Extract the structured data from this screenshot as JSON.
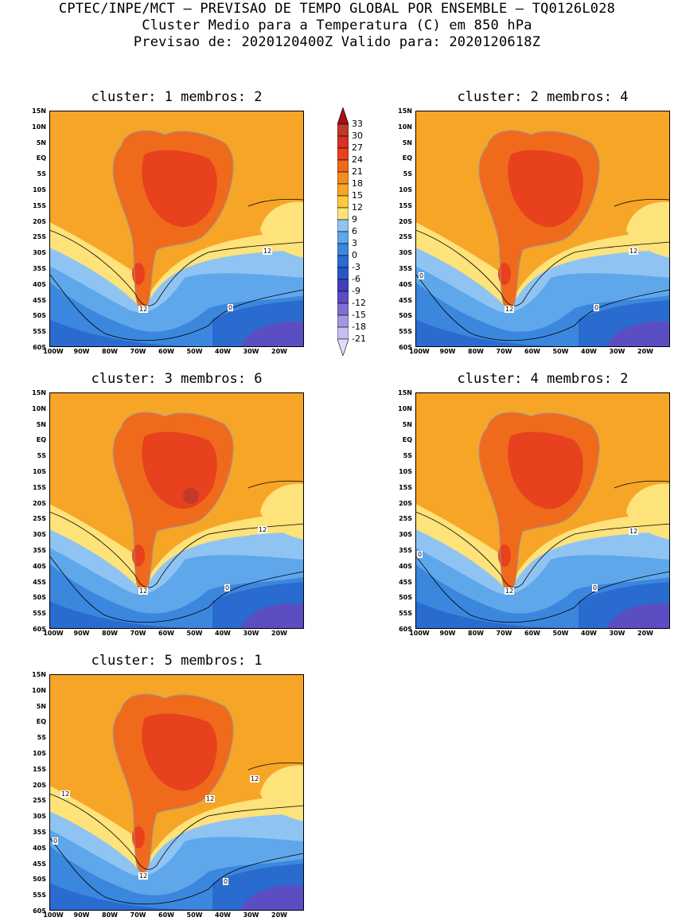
{
  "header": {
    "line1": "CPTEC/INPE/MCT – PREVISAO DE TEMPO GLOBAL POR ENSEMBLE – TQ0126L028",
    "line2": "Cluster Medio para a Temperatura (C) em 850 hPa",
    "line3": "Previsao de: 2020120400Z   Valido para: 2020120618Z"
  },
  "panels": [
    {
      "title": "cluster: 1  membros: 2",
      "contours": [
        "12",
        "12",
        "0"
      ]
    },
    {
      "title": "cluster: 2  membros: 4",
      "contours": [
        "12",
        "12",
        "0",
        "0"
      ]
    },
    {
      "title": "cluster: 3  membros: 6",
      "contours": [
        "12",
        "12",
        "0"
      ]
    },
    {
      "title": "cluster: 4  membros: 2",
      "contours": [
        "12",
        "12",
        "0",
        "0"
      ]
    },
    {
      "title": "cluster: 5  membros: 1",
      "contours": [
        "12",
        "12",
        "12",
        "12",
        "0",
        "0"
      ]
    }
  ],
  "lat_labels": [
    "15N",
    "10N",
    "5N",
    "EQ",
    "5S",
    "10S",
    "15S",
    "20S",
    "25S",
    "30S",
    "35S",
    "40S",
    "45S",
    "50S",
    "55S",
    "60S"
  ],
  "lon_labels": [
    "100W",
    "90W",
    "80W",
    "70W",
    "60W",
    "50W",
    "40W",
    "30W",
    "20W"
  ],
  "colorbar": {
    "labels": [
      "33",
      "30",
      "27",
      "24",
      "21",
      "18",
      "15",
      "12",
      "9",
      "6",
      "3",
      "0",
      "-3",
      "-6",
      "-9",
      "-12",
      "-15",
      "-18",
      "-21"
    ],
    "colors": [
      "#a50f15",
      "#c0392b",
      "#d73027",
      "#e8411e",
      "#f06a1c",
      "#f48c1e",
      "#f7a527",
      "#fbc93a",
      "#fee27a",
      "#8fc4f2",
      "#5ea7ea",
      "#3b87de",
      "#2a6bd0",
      "#2a56c5",
      "#3d40b8",
      "#5a4ec2",
      "#7d6fd3",
      "#a497e2",
      "#c8bdf0",
      "#e3dcf8"
    ]
  },
  "palette": {
    "ocean_warm": "#f7a527",
    "land_hot": "#f06a1c",
    "land_hotter": "#e8411e",
    "yellow": "#fee27a",
    "light_blue": "#8fc4f2",
    "mid_blue": "#5ea7ea",
    "blue": "#3b87de",
    "deep_blue": "#2a6bd0",
    "purple": "#5a4ec2",
    "coast": "#9a9a9a"
  }
}
